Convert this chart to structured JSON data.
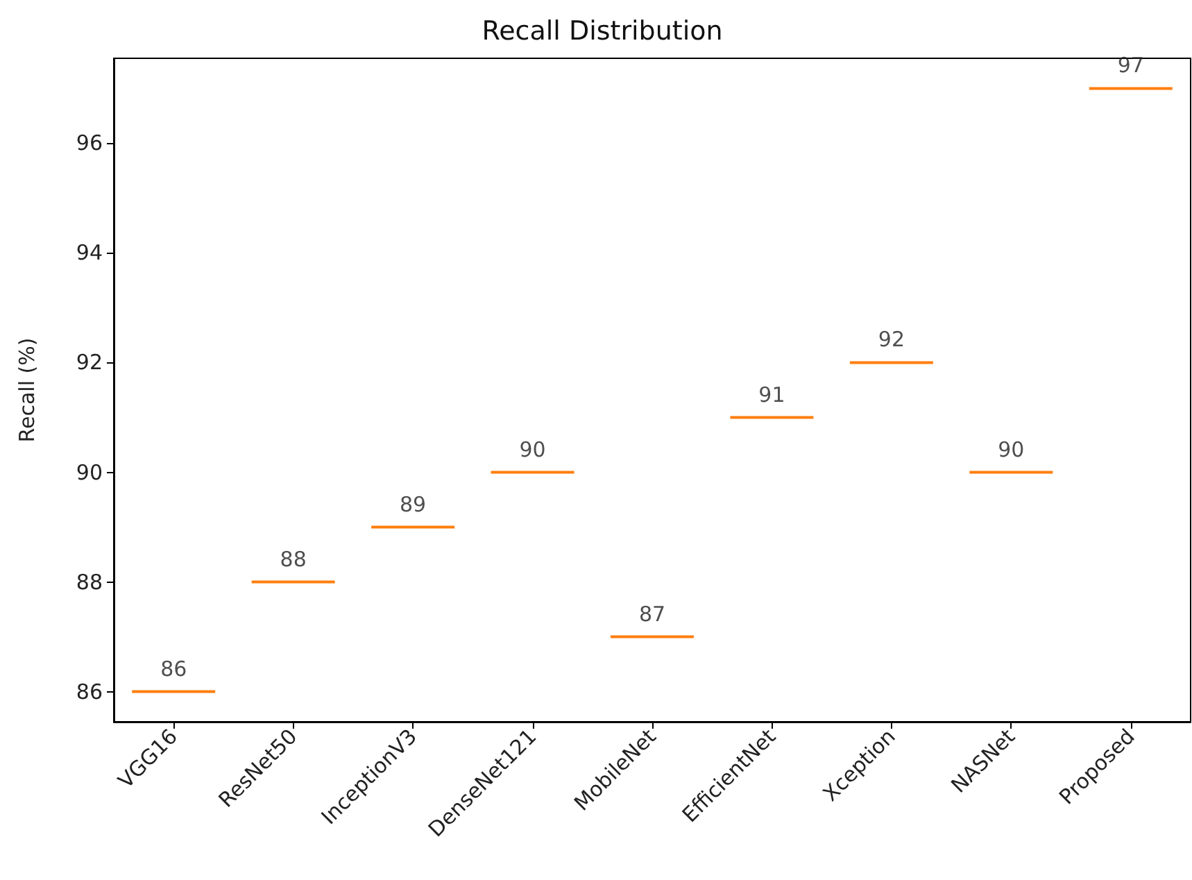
{
  "chart_data": {
    "type": "box",
    "title": "Recall Distribution",
    "ylabel": "Recall (%)",
    "categories": [
      "VGG16",
      "ResNet50",
      "InceptionV3",
      "DenseNet121",
      "MobileNet",
      "EfficientNet",
      "Xception",
      "NASNet",
      "Proposed"
    ],
    "boxes": [
      {
        "low": 86,
        "q1": 86,
        "median": 86,
        "q3": 86,
        "high": 86
      },
      {
        "low": 88,
        "q1": 88,
        "median": 88,
        "q3": 88,
        "high": 88
      },
      {
        "low": 89,
        "q1": 89,
        "median": 89,
        "q3": 89,
        "high": 89
      },
      {
        "low": 90,
        "q1": 90,
        "median": 90,
        "q3": 90,
        "high": 90
      },
      {
        "low": 87,
        "q1": 87,
        "median": 87,
        "q3": 87,
        "high": 87
      },
      {
        "low": 91,
        "q1": 91,
        "median": 91,
        "q3": 91,
        "high": 91
      },
      {
        "low": 92,
        "q1": 92,
        "median": 92,
        "q3": 92,
        "high": 92
      },
      {
        "low": 90,
        "q1": 90,
        "median": 90,
        "q3": 90,
        "high": 90
      },
      {
        "low": 97,
        "q1": 97,
        "median": 97,
        "q3": 97,
        "high": 97
      }
    ],
    "annotations": [
      {
        "text": "86",
        "x": "VGG16",
        "y": 86
      },
      {
        "text": "88",
        "x": "ResNet50",
        "y": 88
      },
      {
        "text": "89",
        "x": "InceptionV3",
        "y": 89
      },
      {
        "text": "90",
        "x": "DenseNet121",
        "y": 90
      },
      {
        "text": "87",
        "x": "MobileNet",
        "y": 87
      },
      {
        "text": "91",
        "x": "EfficientNet",
        "y": 91
      },
      {
        "text": "92",
        "x": "Xception",
        "y": 92
      },
      {
        "text": "90",
        "x": "NASNet",
        "y": 90
      },
      {
        "text": "97",
        "x": "Proposed",
        "y": 97
      }
    ],
    "color": "#ff7f0e",
    "ylim": [
      85.45,
      97.55
    ],
    "yticks": [
      86,
      88,
      90,
      92,
      94,
      96
    ]
  }
}
